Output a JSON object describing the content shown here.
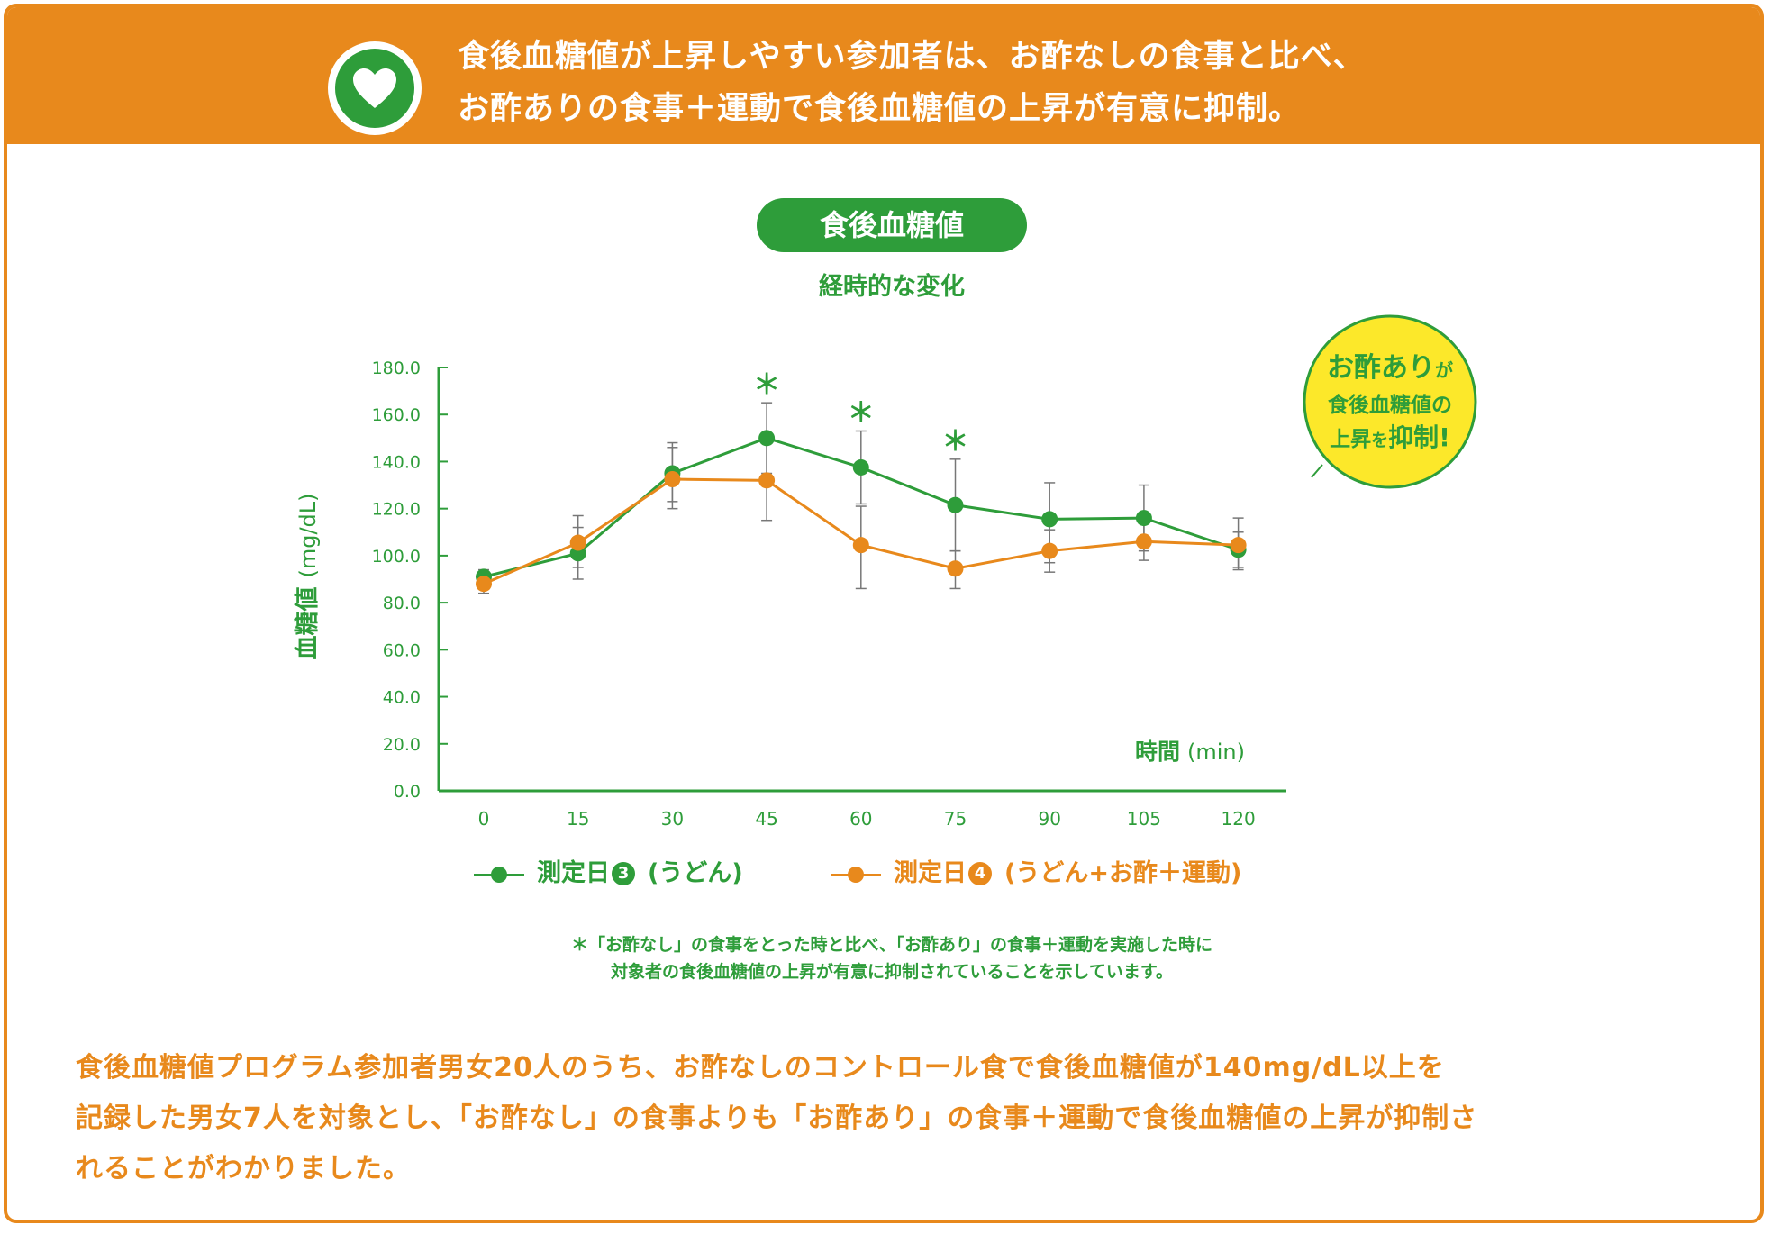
{
  "banner": {
    "line1": "食後血糖値が上昇しやすい参加者は、お酢なしの食事と比べ、",
    "line2": "お酢ありの食事＋運動で食後血糖値の上昇が有意に抑制。",
    "icon": "heart-icon"
  },
  "chart_title": "食後血糖値",
  "chart_subtitle": "経時的な変化",
  "badge": {
    "line1_main": "お酢あり",
    "line1_small": "が",
    "line2": "食後血糖値の",
    "line3_pre": "上昇",
    "line3_small": "を",
    "line3_big": "抑制!"
  },
  "chart_data": {
    "type": "line",
    "x": [
      0,
      15,
      30,
      45,
      60,
      75,
      90,
      105,
      120
    ],
    "xlabel_main": "時間",
    "xlabel_unit": "(min)",
    "ylabel_main": "血糖値",
    "ylabel_unit": "(mg/dL)",
    "ylim": [
      0,
      180
    ],
    "yticks": [
      "0.0",
      "20.0",
      "40.0",
      "60.0",
      "80.0",
      "100.0",
      "120.0",
      "140.0",
      "160.0",
      "180.0"
    ],
    "xticks": [
      "0",
      "15",
      "30",
      "45",
      "60",
      "75",
      "90",
      "105",
      "120"
    ],
    "series": [
      {
        "name": "測定日❸（うどん）",
        "color": "#2e9d3a",
        "values": [
          91,
          101,
          135,
          150,
          137.5,
          121.5,
          115.5,
          116,
          102.5
        ],
        "err_low": [
          88,
          90,
          123,
          135,
          122,
          102,
          97,
          102,
          95
        ],
        "err_high": [
          94,
          112,
          148,
          165,
          153,
          141,
          131,
          130,
          110
        ]
      },
      {
        "name": "測定日❹（うどん+お酢＋運動）",
        "color": "#e8891c",
        "values": [
          88,
          105.5,
          132.5,
          132,
          104.5,
          94.5,
          102,
          106,
          104.5
        ],
        "err_low": [
          84,
          95,
          120,
          115,
          86,
          86,
          93,
          98,
          94
        ],
        "err_high": [
          92,
          117,
          146,
          149,
          121,
          102,
          111,
          114,
          116
        ]
      }
    ],
    "significance": [
      {
        "x": 45,
        "mark": "＊"
      },
      {
        "x": 60,
        "mark": "＊"
      },
      {
        "x": 75,
        "mark": "＊"
      }
    ],
    "grid": false,
    "legend_position": "bottom"
  },
  "legend": {
    "s1_label_pre": "測定日",
    "s1_num": "3",
    "s1_label_post": "(うどん)",
    "s2_label_pre": "測定日",
    "s2_num": "4",
    "s2_label_post": "(うどん+お酢＋運動)"
  },
  "note": {
    "line1": "＊「お酢なし」の食事をとった時と比べ、「お酢あり」の食事＋運動を実施した時に",
    "line2": "対象者の食後血糖値の上昇が有意に抑制されていることを示しています。"
  },
  "body": {
    "line1": "食後血糖値プログラム参加者男女20人のうち、お酢なしのコントロール食で食後血糖値が140mg/dL以上を",
    "line2": "記録した男女7人を対象とし、「お酢なし」の食事よりも「お酢あり」の食事＋運動で食後血糖値の上昇が抑制さ",
    "line3": "れることがわかりました。"
  },
  "colors": {
    "accent": "#e8891c",
    "green": "#2e9d3a",
    "badge_yellow": "#fce82a"
  }
}
